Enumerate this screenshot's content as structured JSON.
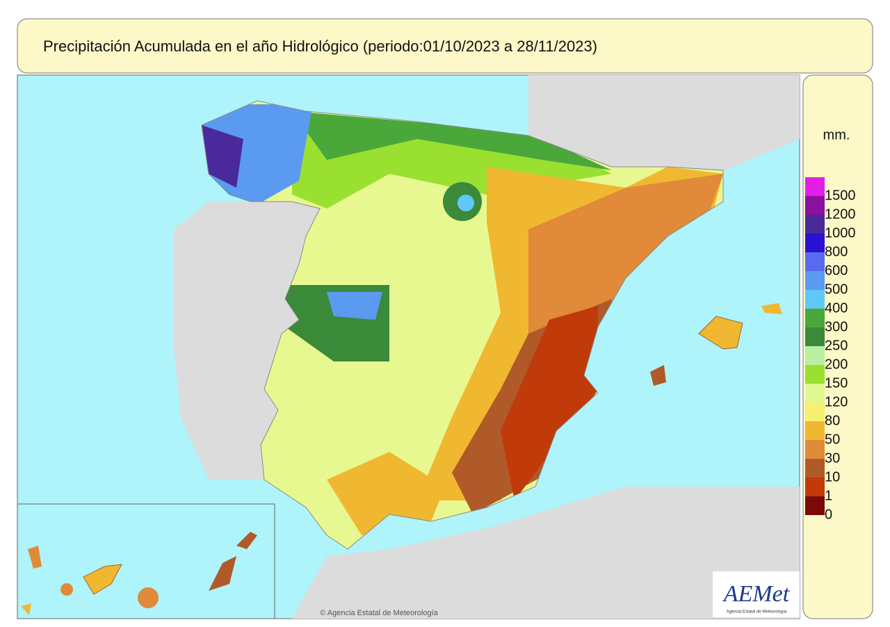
{
  "header": {
    "title": "Precipitación Acumulada en el año Hidrológico  (periodo:01/10/2023 a 28/11/2023)"
  },
  "legend": {
    "unit": "mm.",
    "items": [
      {
        "label": "1500",
        "color": "#e020e8"
      },
      {
        "label": "1200",
        "color": "#8a10a0"
      },
      {
        "label": "1000",
        "color": "#4a2a9a"
      },
      {
        "label": "800",
        "color": "#2a10d0"
      },
      {
        "label": "600",
        "color": "#5a6af0"
      },
      {
        "label": "500",
        "color": "#5a9af0"
      },
      {
        "label": "400",
        "color": "#60c8f8"
      },
      {
        "label": "300",
        "color": "#4aa83a"
      },
      {
        "label": "250",
        "color": "#3a8a3a"
      },
      {
        "label": "200",
        "color": "#b8f0a0"
      },
      {
        "label": "150",
        "color": "#9ae030"
      },
      {
        "label": "120",
        "color": "#e0f890"
      },
      {
        "label": "80",
        "color": "#f8f070"
      },
      {
        "label": "50",
        "color": "#f0b830"
      },
      {
        "label": "30",
        "color": "#e08a3a"
      },
      {
        "label": "10",
        "color": "#b05a2a"
      },
      {
        "label": "1",
        "color": "#c03a0a"
      },
      {
        "label": "0",
        "color": "#7a0a0a"
      }
    ]
  },
  "footer": {
    "copyright": "© Agencia Estatal de Meteorología",
    "logo": "AEMet",
    "logo_caption": "Agencia Estatal de Meteorología"
  }
}
